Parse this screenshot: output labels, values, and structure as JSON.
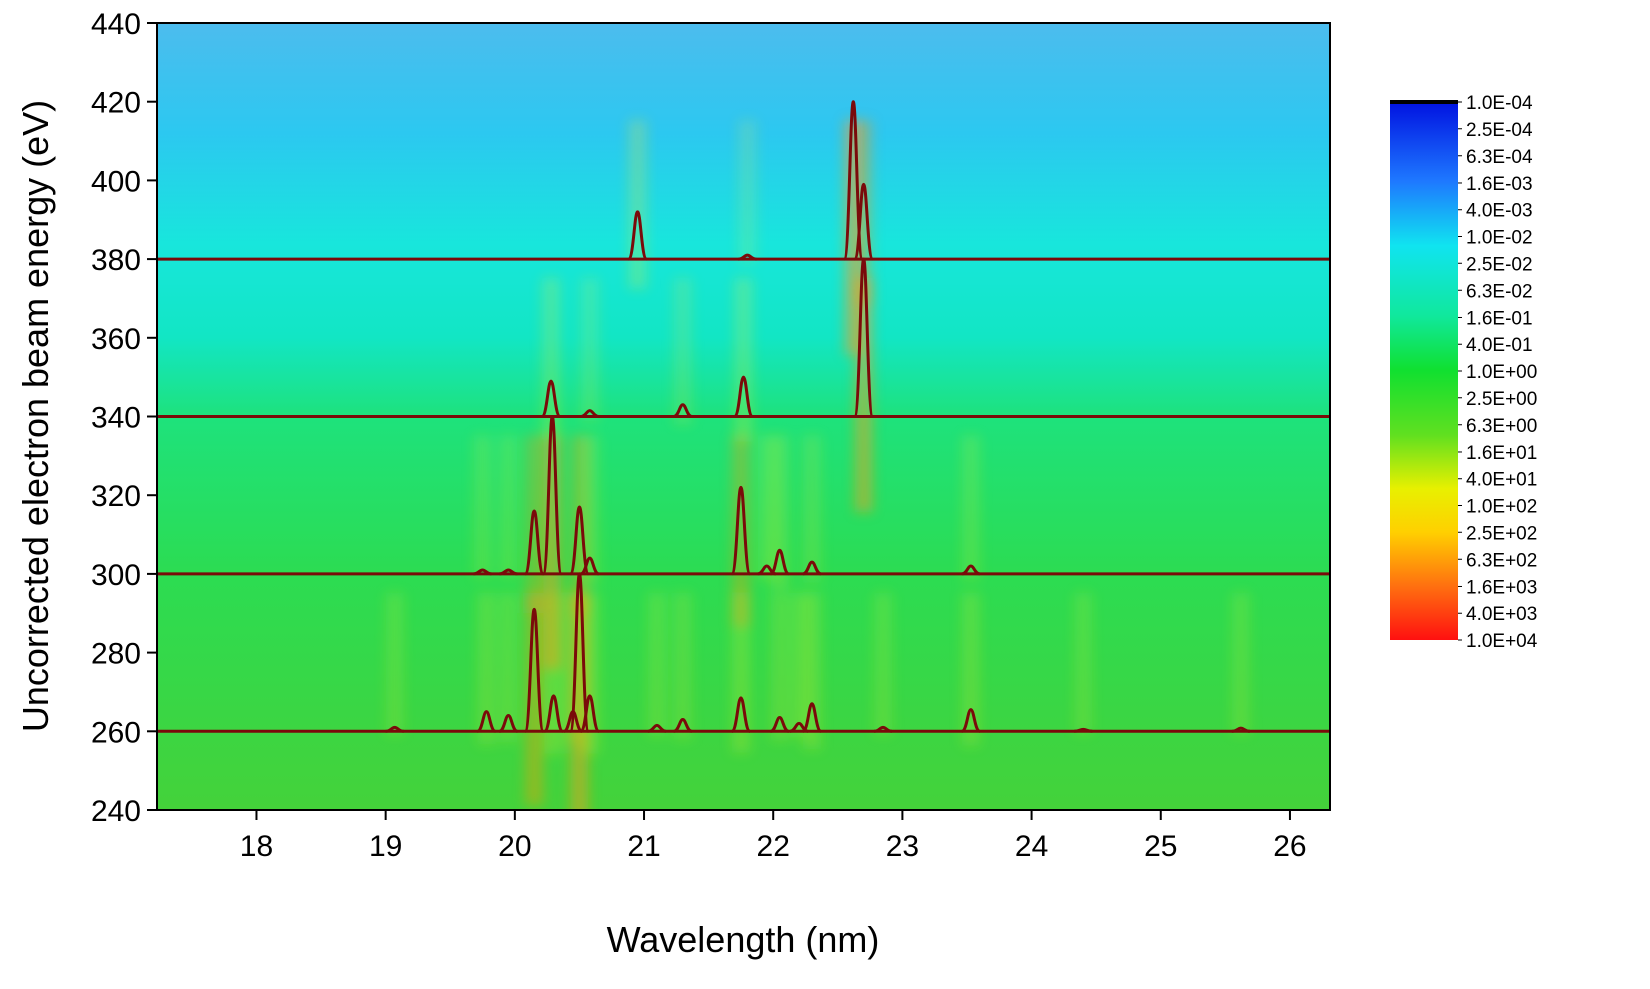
{
  "chart_data": {
    "type": "heatmap-spectra",
    "x_label": "Wavelength (nm)",
    "y_label": "Uncorrected electron beam energy (eV)",
    "xlim": [
      17.23,
      26.31
    ],
    "ylim": [
      240,
      440
    ],
    "xticks": [
      18,
      19,
      20,
      21,
      22,
      23,
      24,
      25,
      26
    ],
    "yticks": [
      240,
      260,
      280,
      300,
      320,
      340,
      360,
      380,
      400,
      420,
      440
    ],
    "line_color": "#7a0a0a",
    "series": [
      {
        "base": 260,
        "x": [
          19.07,
          19.78,
          19.95,
          20.15,
          20.3,
          20.45,
          20.5,
          20.58,
          21.1,
          21.3,
          21.75,
          22.05,
          22.2,
          22.3,
          22.85,
          23.53,
          24.4,
          25.62
        ],
        "values": [
          261,
          265,
          264,
          291,
          269,
          265,
          300,
          269,
          261.5,
          263,
          268.5,
          263.5,
          262,
          267,
          261,
          265.5,
          260.5,
          260.8
        ]
      },
      {
        "base": 300,
        "x": [
          19.75,
          19.95,
          20.15,
          20.29,
          20.5,
          20.58,
          21.75,
          21.95,
          22.05,
          22.3,
          23.53
        ],
        "values": [
          301,
          301,
          316,
          340,
          317,
          304,
          322,
          302,
          306,
          303,
          302
        ]
      },
      {
        "base": 340,
        "x": [
          20.28,
          20.58,
          21.3,
          21.77,
          22.7
        ],
        "values": [
          349,
          341.5,
          343,
          350,
          380
        ]
      },
      {
        "base": 380,
        "x": [
          20.95,
          21.8,
          22.62,
          22.7
        ],
        "values": [
          392,
          381,
          420,
          399
        ]
      }
    ],
    "colorbar": {
      "log": true,
      "lim": [
        0.0001,
        10000
      ],
      "ticks": [
        {
          "value": 0.0001,
          "label": "1.0E-04"
        },
        {
          "value": 0.00025,
          "label": "2.5E-04"
        },
        {
          "value": 0.00063,
          "label": "6.3E-04"
        },
        {
          "value": 0.0016,
          "label": "1.6E-03"
        },
        {
          "value": 0.004,
          "label": "4.0E-03"
        },
        {
          "value": 0.01,
          "label": "1.0E-02"
        },
        {
          "value": 0.025,
          "label": "2.5E-02"
        },
        {
          "value": 0.063,
          "label": "6.3E-02"
        },
        {
          "value": 0.16,
          "label": "1.6E-01"
        },
        {
          "value": 0.4,
          "label": "4.0E-01"
        },
        {
          "value": 1,
          "label": "1.0E+00"
        },
        {
          "value": 2.5,
          "label": "2.5E+00"
        },
        {
          "value": 6.3,
          "label": "6.3E+00"
        },
        {
          "value": 16,
          "label": "1.6E+01"
        },
        {
          "value": 40,
          "label": "4.0E+01"
        },
        {
          "value": 100,
          "label": "1.0E+02"
        },
        {
          "value": 250,
          "label": "2.5E+02"
        },
        {
          "value": 630,
          "label": "6.3E+02"
        },
        {
          "value": 1600,
          "label": "1.6E+03"
        },
        {
          "value": 4000,
          "label": "4.0E+03"
        },
        {
          "value": 10000,
          "label": "1.0E+04"
        }
      ]
    }
  }
}
